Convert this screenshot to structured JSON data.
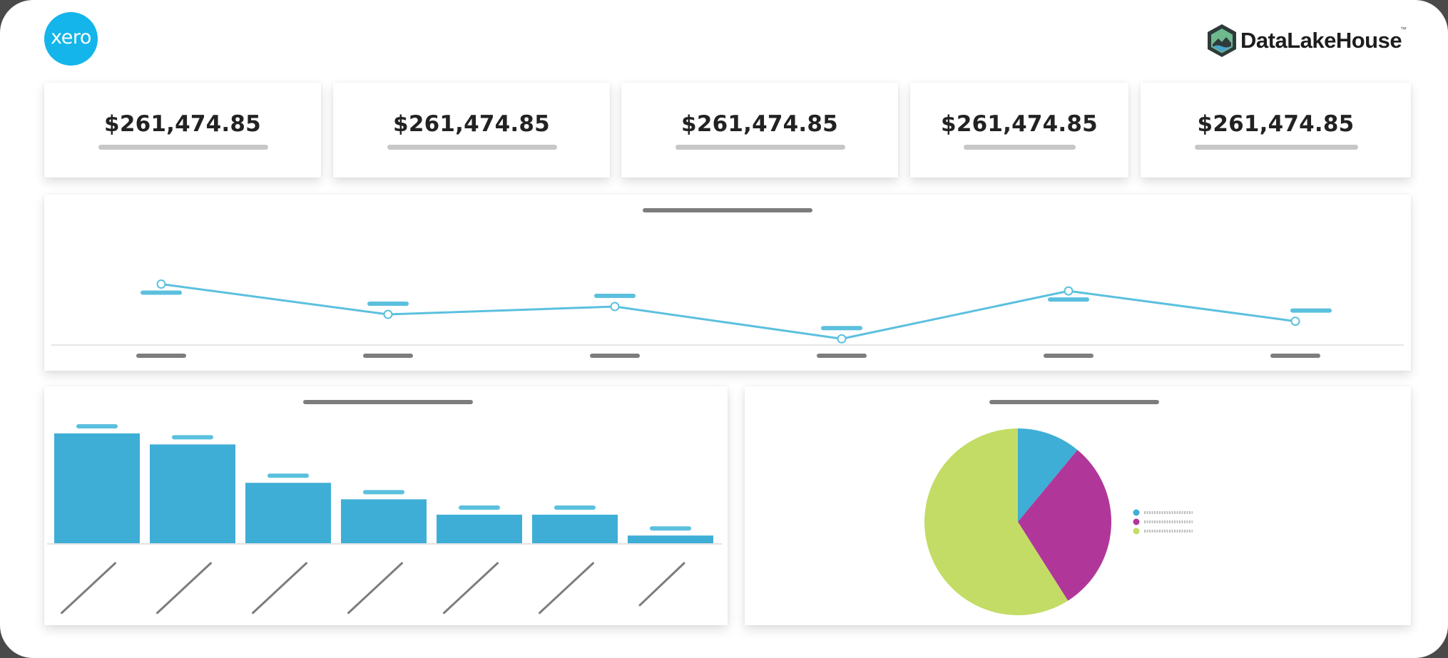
{
  "brand": {
    "left_logo": "xero",
    "right_logo": "DataLakeHouse",
    "right_logo_mark": "™",
    "right_logo_icon": "datalakehouse-hexagon-icon"
  },
  "kpis": [
    {
      "value": "$261,474.85"
    },
    {
      "value": "$261,474.85"
    },
    {
      "value": "$261,474.85"
    },
    {
      "value": "$261,474.85"
    },
    {
      "value": "$261,474.85"
    }
  ],
  "colors": {
    "line": "#5bc0de",
    "bar": "#3eaed6",
    "pie": [
      "#3eaed6",
      "#b03799",
      "#c2dc66"
    ],
    "placeholder_dark": "#7d7d7d",
    "placeholder_light": "#c7c7c7"
  },
  "chart_data": [
    {
      "type": "line",
      "title": "",
      "grid": false,
      "labels_redacted": true,
      "ylim": [
        0,
        100
      ],
      "values": [
        58,
        27,
        35,
        2,
        51,
        20
      ]
    },
    {
      "type": "bar",
      "title": "",
      "labels_redacted": true,
      "ylim": [
        0,
        100
      ],
      "values": [
        100,
        90,
        55,
        40,
        26,
        26,
        7
      ]
    },
    {
      "type": "pie",
      "title": "",
      "labels_redacted": true,
      "legend_placement": "right",
      "values": [
        11,
        30,
        59
      ]
    }
  ]
}
